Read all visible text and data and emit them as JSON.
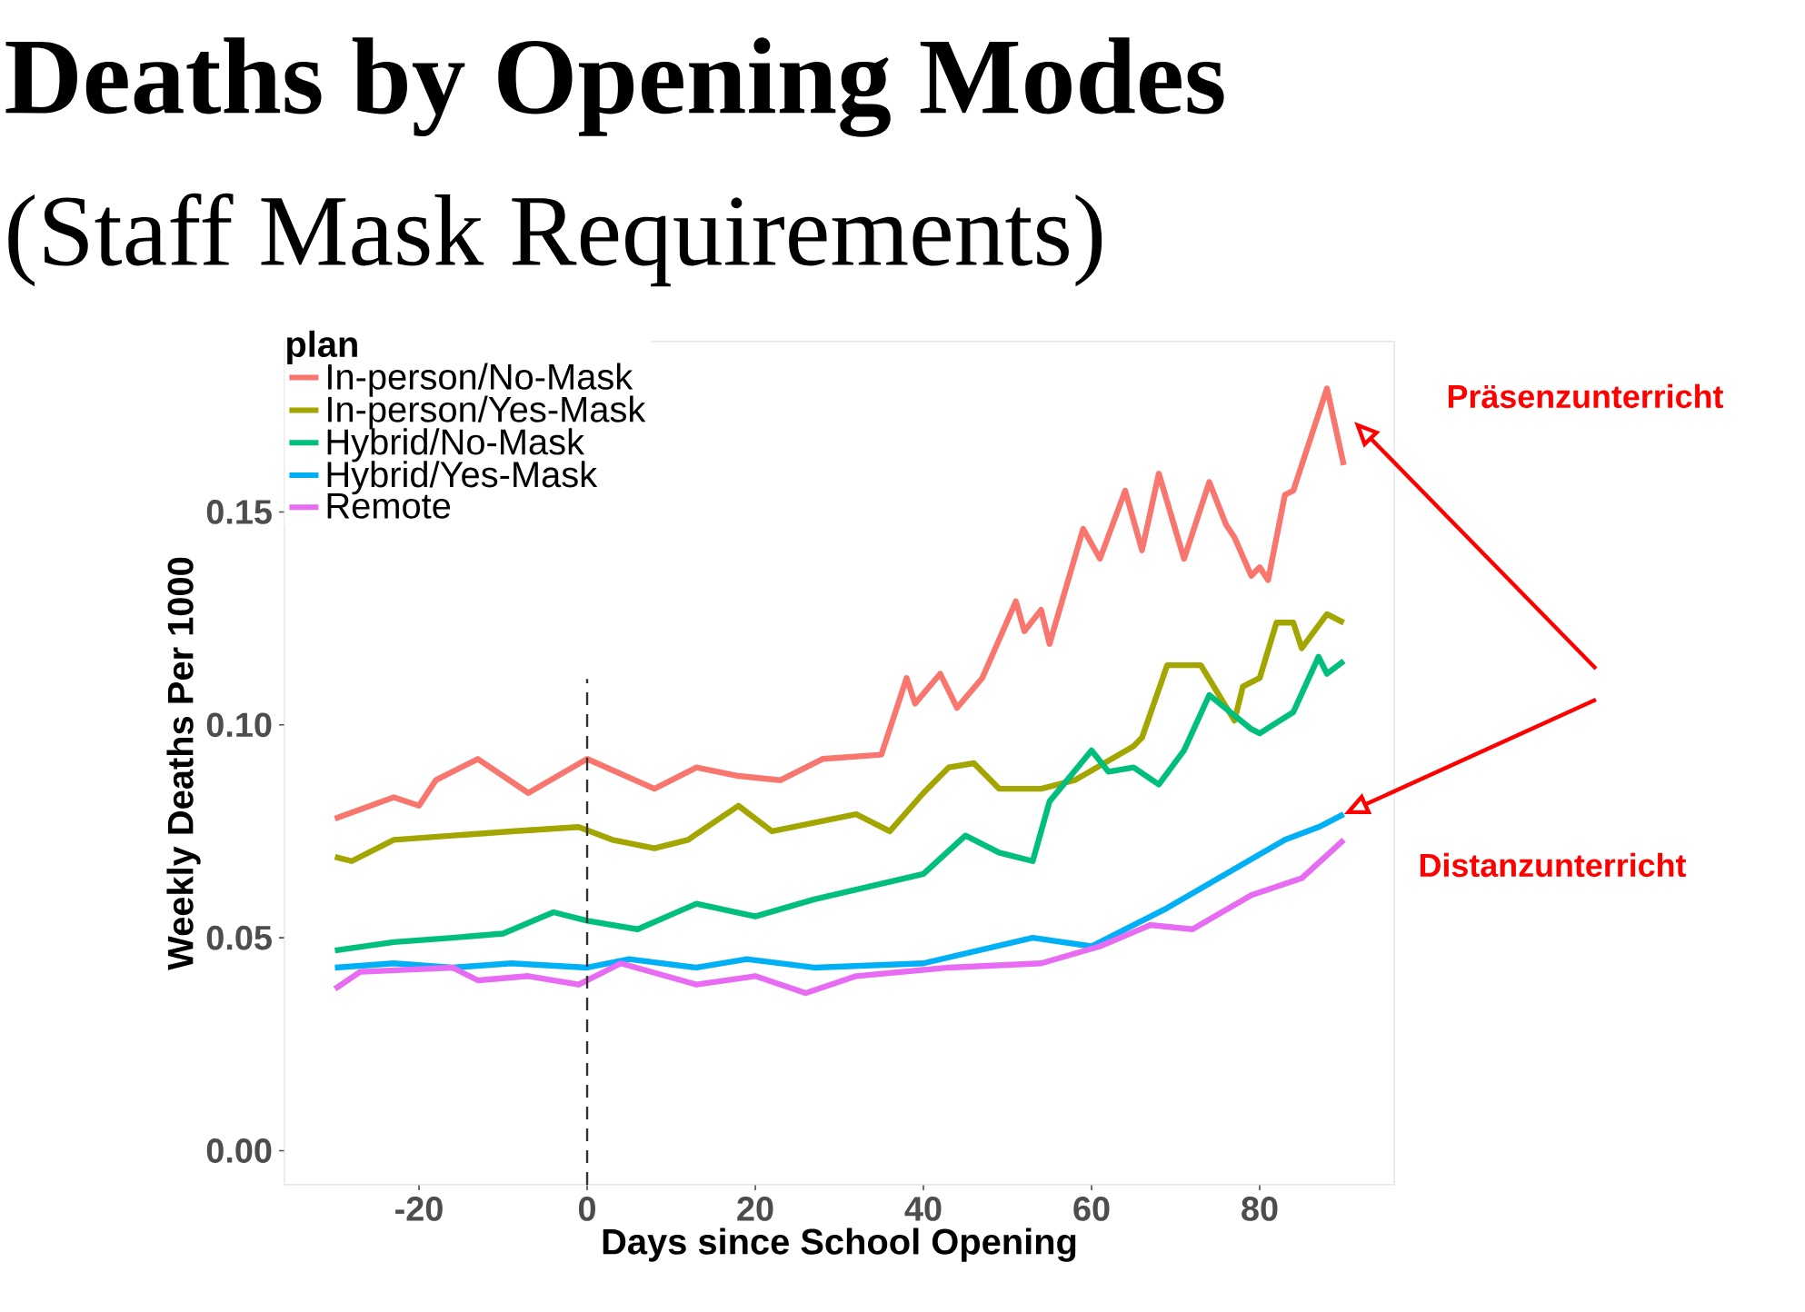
{
  "chart_data": {
    "type": "line",
    "title": "Deaths by Opening Modes",
    "subtitle": "(Staff Mask Requirements)",
    "xlabel": "Days since School Opening",
    "ylabel": "Weekly Deaths Per 1000",
    "legend_title": "plan",
    "legend": "top left",
    "xlim": [
      -36,
      96
    ],
    "ylim": [
      -0.008,
      0.19
    ],
    "xticks": [
      -20,
      0,
      20,
      40,
      60,
      80
    ],
    "yticks": [
      {
        "value": 0,
        "label": "0.00"
      },
      {
        "value": 0.05,
        "label": "0.05"
      },
      {
        "value": 0.1,
        "label": "0.10"
      },
      {
        "value": 0.15,
        "label": "0.15"
      }
    ],
    "ref_lines": [
      {
        "axis": "x",
        "value": 0,
        "line_style": "dashed"
      }
    ],
    "annotations": [
      "Präsenzunterricht",
      {
        "text": "Distanzunterricht",
        "x": 90,
        "y": 0.079
      }
    ],
    "series": [
      {
        "name": "In-person/No-Mask",
        "color": "#F8766D",
        "x": [
          -30,
          -23,
          -20,
          -18,
          -13,
          -7,
          0,
          8,
          13,
          18,
          23,
          28,
          35,
          38,
          39,
          42,
          44,
          47,
          51,
          52,
          54,
          55,
          59,
          61,
          64,
          66,
          68,
          71,
          74,
          76,
          77,
          79,
          80,
          81,
          83,
          84,
          88,
          90
        ],
        "values": [
          0.078,
          0.083,
          0.081,
          0.087,
          0.092,
          0.084,
          0.092,
          0.085,
          0.09,
          0.088,
          0.087,
          0.092,
          0.093,
          0.111,
          0.105,
          0.112,
          0.104,
          0.111,
          0.129,
          0.122,
          0.127,
          0.119,
          0.146,
          0.139,
          0.155,
          0.141,
          0.159,
          0.139,
          0.157,
          0.147,
          0.144,
          0.135,
          0.137,
          0.134,
          0.154,
          0.155,
          0.179,
          0.161
        ]
      },
      {
        "name": "In-person/Yes-Mask",
        "color": "#A3A500",
        "x": [
          -30,
          -28,
          -23,
          -16,
          -9,
          -1,
          3,
          8,
          12,
          18,
          22,
          27,
          32,
          36,
          40,
          43,
          46,
          49,
          54,
          58,
          65,
          66,
          69,
          73,
          77,
          78,
          80,
          82,
          84,
          85,
          88,
          90
        ],
        "values": [
          0.069,
          0.068,
          0.073,
          0.074,
          0.075,
          0.076,
          0.073,
          0.071,
          0.073,
          0.081,
          0.075,
          0.077,
          0.079,
          0.075,
          0.084,
          0.09,
          0.091,
          0.085,
          0.085,
          0.087,
          0.095,
          0.097,
          0.114,
          0.114,
          0.101,
          0.109,
          0.111,
          0.124,
          0.124,
          0.118,
          0.126,
          0.124
        ]
      },
      {
        "name": "Hybrid/No-Mask",
        "color": "#00BF7D",
        "x": [
          -30,
          -23,
          -16,
          -10,
          -4,
          0,
          6,
          13,
          20,
          27,
          40,
          45,
          49,
          53,
          55,
          60,
          62,
          65,
          68,
          71,
          74,
          79,
          80,
          84,
          87,
          88,
          90
        ],
        "values": [
          0.047,
          0.049,
          0.05,
          0.051,
          0.056,
          0.054,
          0.052,
          0.058,
          0.055,
          0.059,
          0.065,
          0.074,
          0.07,
          0.068,
          0.082,
          0.094,
          0.089,
          0.09,
          0.086,
          0.094,
          0.107,
          0.099,
          0.098,
          0.103,
          0.116,
          0.112,
          0.115
        ]
      },
      {
        "name": "Hybrid/Yes-Mask",
        "color": "#00B0F6",
        "x": [
          -30,
          -23,
          -16,
          -9,
          0,
          5,
          13,
          19,
          27,
          40,
          53,
          60,
          69,
          76,
          83,
          87,
          90
        ],
        "values": [
          0.043,
          0.044,
          0.043,
          0.044,
          0.043,
          0.045,
          0.043,
          0.045,
          0.043,
          0.044,
          0.05,
          0.048,
          0.057,
          0.065,
          0.073,
          0.076,
          0.079
        ]
      },
      {
        "name": "Remote",
        "color": "#E76BF3",
        "x": [
          -30,
          -27,
          -16,
          -13,
          -7,
          -1,
          4,
          13,
          20,
          26,
          32,
          43,
          54,
          61,
          67,
          72,
          79,
          85,
          90
        ],
        "values": [
          0.038,
          0.042,
          0.043,
          0.04,
          0.041,
          0.039,
          0.044,
          0.039,
          0.041,
          0.037,
          0.041,
          0.043,
          0.044,
          0.048,
          0.053,
          0.052,
          0.06,
          0.064,
          0.073
        ]
      }
    ]
  }
}
